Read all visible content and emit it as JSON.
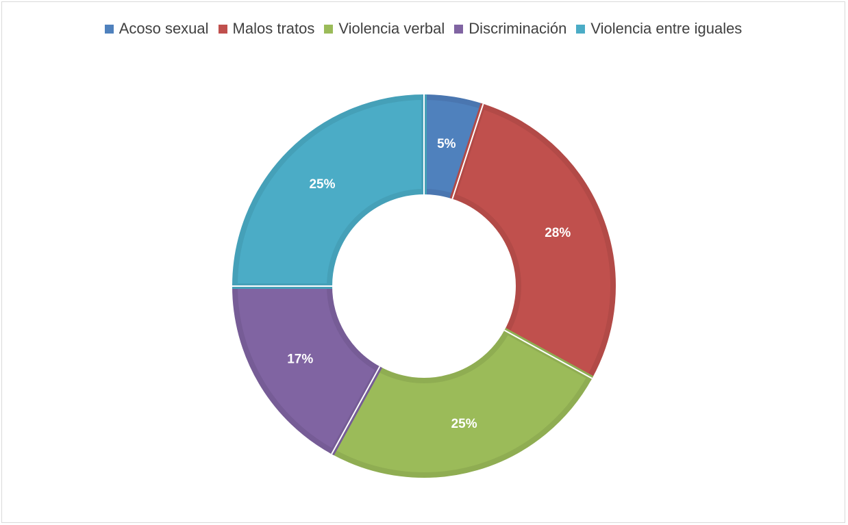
{
  "chart_data": {
    "type": "pie",
    "donut": true,
    "title": "",
    "legend_position": "top",
    "slices": [
      {
        "name": "Acoso sexual",
        "value": 5,
        "label": "5%",
        "color": "#4F81BD",
        "stroke": "#4A76B0"
      },
      {
        "name": "Malos tratos",
        "value": 28,
        "label": "28%",
        "color": "#C0504D",
        "stroke": "#B24A47"
      },
      {
        "name": "Violencia verbal",
        "value": 25,
        "label": "25%",
        "color": "#9BBB59",
        "stroke": "#8FAD52"
      },
      {
        "name": "Discriminación",
        "value": 17,
        "label": "17%",
        "color": "#8064A2",
        "stroke": "#765C96"
      },
      {
        "name": "Violencia entre iguales",
        "value": 25,
        "label": "25%",
        "color": "#4BACC6",
        "stroke": "#45A0B8"
      }
    ]
  }
}
